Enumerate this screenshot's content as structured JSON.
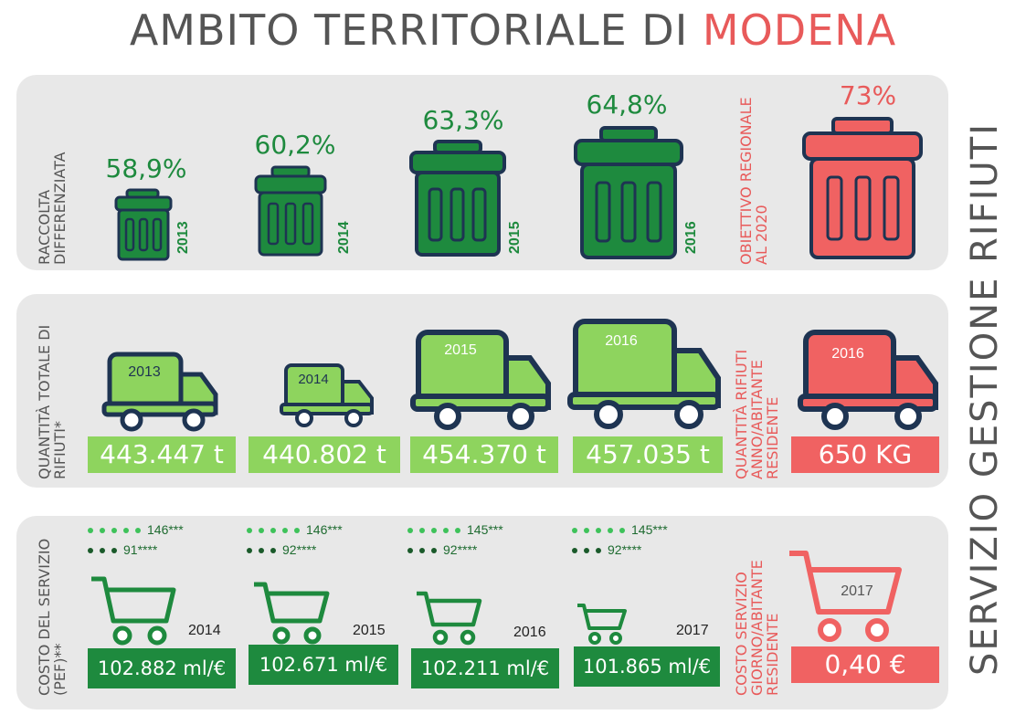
{
  "title": {
    "prefix": "AMBITO TERRITORIALE DI ",
    "highlight": "MODENA"
  },
  "side_title": "SERVIZIO GESTIONE RIFIUTI",
  "colors": {
    "green": "#1e8a3e",
    "light_green": "#8ed45e",
    "red": "#f06262",
    "navy": "#1e3452"
  },
  "row1": {
    "label": "RACCOLTA DIFFERENZIATA",
    "items": [
      {
        "pct": "58,9%",
        "year": "2013"
      },
      {
        "pct": "60,2%",
        "year": "2014"
      },
      {
        "pct": "63,3%",
        "year": "2015"
      },
      {
        "pct": "64,8%",
        "year": "2016"
      }
    ],
    "target_label": "OBIETTIVO REGIONALE AL 2020",
    "target_pct": "73%"
  },
  "row2": {
    "label": "QUANTITÀ TOTALE DI RIFIUTI*",
    "items": [
      {
        "year": "2013",
        "value": "443.447 t"
      },
      {
        "year": "2014",
        "value": "440.802 t"
      },
      {
        "year": "2015",
        "value": "454.370 t"
      },
      {
        "year": "2016",
        "value": "457.035 t"
      }
    ],
    "target_label": "QUANTITÀ RIFIUTI ANNO/ABITANTE RESIDENTE",
    "target_year": "2016",
    "target_value": "650 KG"
  },
  "row3": {
    "label": "COSTO DEL SERVIZIO (PEF)**",
    "items": [
      {
        "year": "2014",
        "value": "102.882 ml/€",
        "a": "146***",
        "b": "91****"
      },
      {
        "year": "2015",
        "value": "102.671 ml/€",
        "a": "146***",
        "b": "92****"
      },
      {
        "year": "2016",
        "value": "102.211 ml/€",
        "a": "145***",
        "b": "92****"
      },
      {
        "year": "2017",
        "value": "101.865 ml/€",
        "a": "145***",
        "b": "92****"
      }
    ],
    "target_label": "COSTO SERVIZIO GIORNO/ABITANTE RESIDENTE",
    "target_year": "2017",
    "target_value": "0,40 €"
  }
}
